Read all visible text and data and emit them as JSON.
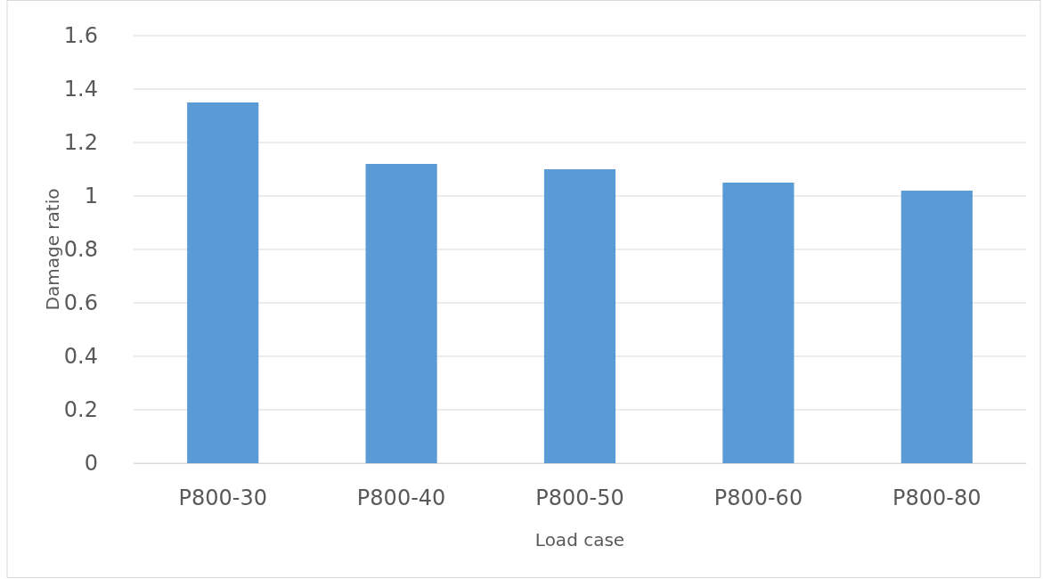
{
  "chart_data": {
    "type": "bar",
    "xlabel": "Load case",
    "ylabel": "Damage ratio",
    "categories": [
      "P800-30",
      "P800-40",
      "P800-50",
      "P800-60",
      "P800-80"
    ],
    "values": [
      1.35,
      1.12,
      1.1,
      1.05,
      1.02
    ],
    "color": "#5b9bd5",
    "ylim": [
      0,
      1.6
    ],
    "yticks": [
      0,
      0.2,
      0.4,
      0.6,
      0.8,
      1,
      1.2,
      1.4,
      1.6
    ],
    "grid": "y"
  }
}
